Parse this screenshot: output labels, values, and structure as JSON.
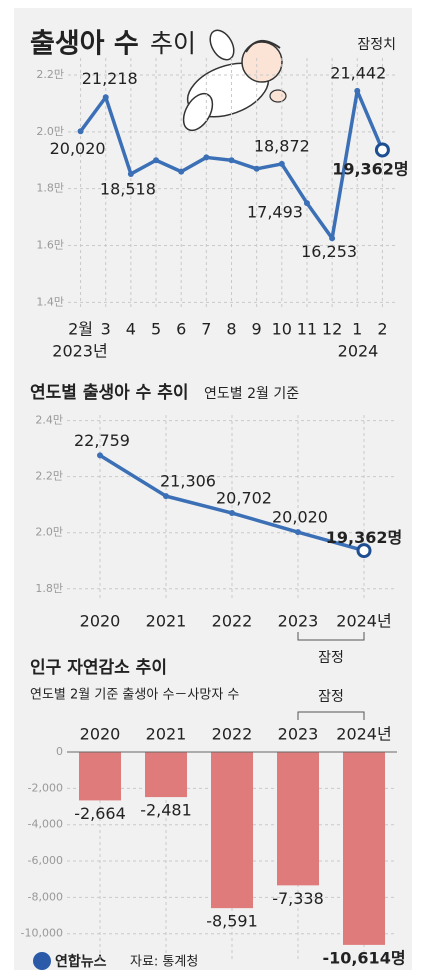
{
  "chart_data": [
    {
      "type": "line",
      "title": "출생아 수",
      "title_light": "추이",
      "note": "잠정치",
      "categories": [
        "2월",
        "3",
        "4",
        "5",
        "6",
        "7",
        "8",
        "9",
        "10",
        "11",
        "12",
        "1",
        "2"
      ],
      "year_labels": [
        "2023년",
        "2024"
      ],
      "values": [
        20020,
        21218,
        18518,
        19000,
        18600,
        19100,
        19000,
        18700,
        18872,
        17493,
        16253,
        21442,
        19362
      ],
      "value_labels": [
        "20,020",
        "21,218",
        "18,518",
        null,
        null,
        null,
        null,
        null,
        "18,872",
        "17,493",
        "16,253",
        "21,442",
        "19,362명"
      ],
      "color": "#3b6fb6",
      "ylim": [
        13800,
        22600
      ],
      "yticks": [
        {
          "value": 14000,
          "label": "1.4만"
        },
        {
          "value": 16000,
          "label": "1.6만"
        },
        {
          "value": 18000,
          "label": "1.8만"
        },
        {
          "value": 20000,
          "label": "2.0만"
        },
        {
          "value": 22000,
          "label": "2.2만"
        }
      ],
      "grid": true
    },
    {
      "type": "line",
      "title": "연도별 출생아 수 추이",
      "subtitle": "연도별 2월 기준",
      "categories": [
        "2020",
        "2021",
        "2022",
        "2023",
        "2024년"
      ],
      "values": [
        22759,
        21306,
        20702,
        20020,
        19362
      ],
      "value_labels": [
        "22,759",
        "21,306",
        "20,702",
        "20,020",
        "19,362명"
      ],
      "annotation": "잠정",
      "color": "#3b6fb6",
      "ylim": [
        17600,
        24200
      ],
      "yticks": [
        {
          "value": 18000,
          "label": "1.8만"
        },
        {
          "value": 20000,
          "label": "2.0만"
        },
        {
          "value": 22000,
          "label": "2.2만"
        },
        {
          "value": 24000,
          "label": "2.4만"
        }
      ],
      "grid": true
    },
    {
      "type": "bar",
      "title": "인구 자연감소 추이",
      "subtitle": "연도별 2월 기준 출생아 수－사망자 수",
      "categories": [
        "2020",
        "2021",
        "2022",
        "2023",
        "2024년"
      ],
      "values": [
        -2664,
        -2481,
        -8591,
        -7338,
        -10614
      ],
      "value_labels": [
        "-2,664",
        "-2,481",
        "-8,591",
        "-7,338",
        "-10,614명"
      ],
      "annotation": "잠정",
      "color": "#e07b7b",
      "ylim": [
        -11500,
        0
      ],
      "yticks": [
        0,
        {
          "value": -2000,
          "label": "-2,000"
        },
        {
          "value": -4000,
          "label": "-4,000"
        },
        {
          "value": -6000,
          "label": "-6,000"
        },
        {
          "value": -8000,
          "label": "-8,000"
        },
        {
          "value": -10000,
          "label": "-10,000"
        }
      ],
      "grid": true
    }
  ],
  "footer": {
    "brand": "연합뉴스",
    "source": "자료: 통계청"
  }
}
